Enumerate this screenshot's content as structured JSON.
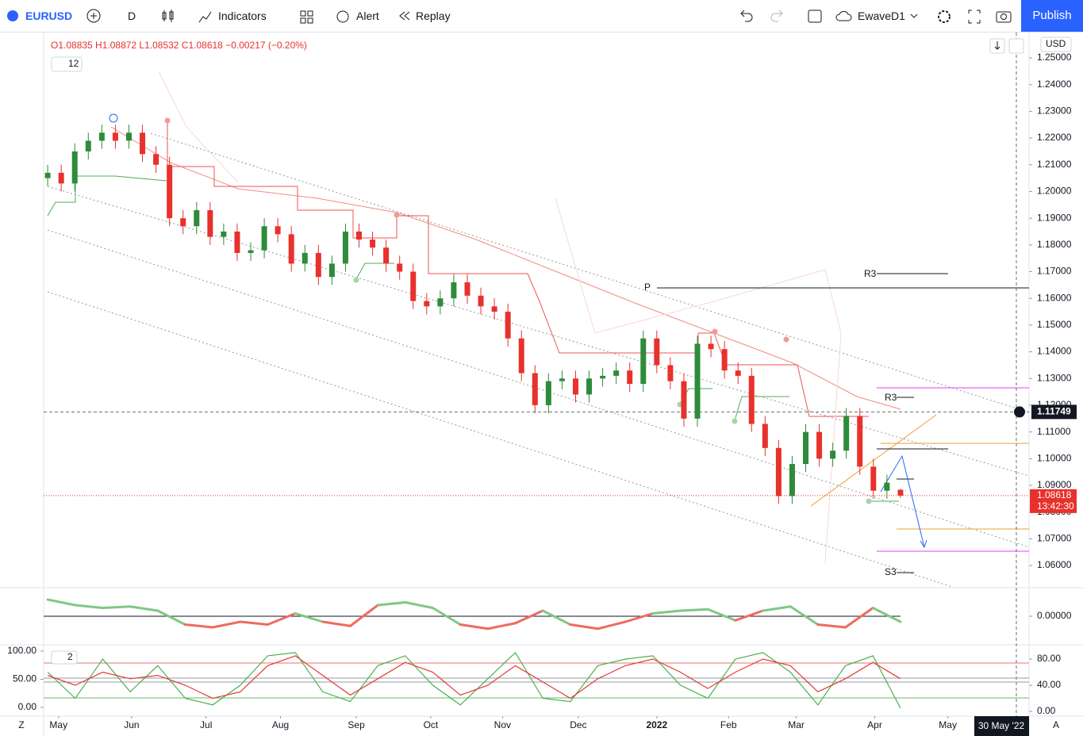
{
  "toolbar": {
    "symbol": "EURUSD",
    "interval": "D",
    "indicators": "Indicators",
    "alert": "Alert",
    "replay": "Replay",
    "layout": "EwaveD1",
    "publish": "Publish"
  },
  "legend": {
    "ohlc": "O1.08835 H1.08872 L1.08532 C1.08618 −0.00217 (−0.20%)",
    "indicator_count": "12",
    "pane_count": "2"
  },
  "price_axis": {
    "currency": "USD",
    "crosshair": 1.11749,
    "last_price": 1.08618,
    "countdown": "13:42:30"
  },
  "annotations": {
    "pivot": "P",
    "r3_upper": "R3",
    "r3_lower": "R3",
    "s3": "S3"
  },
  "time_axis": {
    "left": "Z",
    "right": "A",
    "crosshair_date": "30 May '22"
  },
  "chart_data": [
    {
      "type": "candlestick",
      "up_color": "#2e8b3a",
      "down_color": "#e8312c",
      "grid": false,
      "xlim": [
        -0.3,
        72.5
      ],
      "ylim": [
        1.052,
        1.2598
      ],
      "xticks": [
        {
          "value": 0.8,
          "label": "May"
        },
        {
          "value": 6.2,
          "label": "Jun"
        },
        {
          "value": 11.7,
          "label": "Jul"
        },
        {
          "value": 17.2,
          "label": "Aug"
        },
        {
          "value": 22.8,
          "label": "Sep"
        },
        {
          "value": 28.3,
          "label": "Oct"
        },
        {
          "value": 33.6,
          "label": "Nov"
        },
        {
          "value": 39.2,
          "label": "Dec"
        },
        {
          "value": 45.0,
          "label": "2022"
        },
        {
          "value": 50.3,
          "label": "Feb"
        },
        {
          "value": 55.3,
          "label": "Mar"
        },
        {
          "value": 61.1,
          "label": "Apr"
        },
        {
          "value": 66.5,
          "label": "May"
        }
      ],
      "yticks": [
        {
          "value": 1.25,
          "label": "1.25000"
        },
        {
          "value": 1.24,
          "label": "1.24000"
        },
        {
          "value": 1.23,
          "label": "1.23000"
        },
        {
          "value": 1.22,
          "label": "1.22000"
        },
        {
          "value": 1.21,
          "label": "1.21000"
        },
        {
          "value": 1.2,
          "label": "1.20000"
        },
        {
          "value": 1.19,
          "label": "1.19000"
        },
        {
          "value": 1.18,
          "label": "1.18000"
        },
        {
          "value": 1.17,
          "label": "1.17000"
        },
        {
          "value": 1.16,
          "label": "1.16000"
        },
        {
          "value": 1.15,
          "label": "1.15000"
        },
        {
          "value": 1.14,
          "label": "1.14000"
        },
        {
          "value": 1.13,
          "label": "1.13000"
        },
        {
          "value": 1.12,
          "label": "1.12000"
        },
        {
          "value": 1.11,
          "label": "1.11000"
        },
        {
          "value": 1.1,
          "label": "1.10000"
        },
        {
          "value": 1.09,
          "label": "1.09000"
        },
        {
          "value": 1.08,
          "label": "1.08000"
        },
        {
          "value": 1.07,
          "label": "1.07000"
        },
        {
          "value": 1.06,
          "label": "1.06000"
        }
      ],
      "open": [
        1.205,
        1.207,
        1.203,
        1.215,
        1.219,
        1.222,
        1.219,
        1.222,
        1.214,
        1.21,
        1.19,
        1.187,
        1.193,
        1.183,
        1.185,
        1.177,
        1.178,
        1.187,
        1.184,
        1.173,
        1.177,
        1.168,
        1.173,
        1.185,
        1.182,
        1.179,
        1.173,
        1.17,
        1.159,
        1.157,
        1.16,
        1.166,
        1.161,
        1.157,
        1.155,
        1.145,
        1.132,
        1.12,
        1.129,
        1.13,
        1.124,
        1.13,
        1.131,
        1.133,
        1.128,
        1.145,
        1.135,
        1.129,
        1.115,
        1.143,
        1.141,
        1.133,
        1.131,
        1.113,
        1.104,
        1.086,
        1.098,
        1.11,
        1.1,
        1.103,
        1.116,
        1.097,
        1.088,
        1.08835
      ],
      "high": [
        1.21,
        1.21,
        1.218,
        1.222,
        1.225,
        1.225,
        1.225,
        1.225,
        1.217,
        1.213,
        1.193,
        1.196,
        1.196,
        1.188,
        1.188,
        1.181,
        1.19,
        1.19,
        1.187,
        1.18,
        1.18,
        1.176,
        1.188,
        1.188,
        1.185,
        1.182,
        1.176,
        1.173,
        1.162,
        1.163,
        1.169,
        1.169,
        1.164,
        1.16,
        1.158,
        1.148,
        1.135,
        1.132,
        1.133,
        1.133,
        1.133,
        1.134,
        1.136,
        1.136,
        1.148,
        1.148,
        1.138,
        1.132,
        1.146,
        1.146,
        1.144,
        1.136,
        1.134,
        1.116,
        1.107,
        1.101,
        1.113,
        1.113,
        1.106,
        1.119,
        1.119,
        1.1,
        1.094,
        1.08872
      ],
      "low": [
        1.202,
        1.2,
        1.2,
        1.212,
        1.216,
        1.216,
        1.216,
        1.211,
        1.207,
        1.187,
        1.184,
        1.184,
        1.18,
        1.18,
        1.174,
        1.174,
        1.175,
        1.181,
        1.17,
        1.17,
        1.165,
        1.165,
        1.17,
        1.179,
        1.176,
        1.17,
        1.167,
        1.156,
        1.154,
        1.154,
        1.157,
        1.158,
        1.154,
        1.152,
        1.142,
        1.129,
        1.117,
        1.117,
        1.126,
        1.121,
        1.121,
        1.127,
        1.128,
        1.125,
        1.125,
        1.132,
        1.126,
        1.112,
        1.112,
        1.138,
        1.13,
        1.128,
        1.11,
        1.101,
        1.083,
        1.083,
        1.095,
        1.097,
        1.097,
        1.1,
        1.094,
        1.085,
        1.085,
        1.08532
      ],
      "close": [
        1.207,
        1.203,
        1.215,
        1.219,
        1.222,
        1.219,
        1.222,
        1.214,
        1.21,
        1.19,
        1.187,
        1.193,
        1.183,
        1.185,
        1.177,
        1.178,
        1.187,
        1.184,
        1.173,
        1.177,
        1.168,
        1.173,
        1.185,
        1.182,
        1.179,
        1.173,
        1.17,
        1.159,
        1.157,
        1.16,
        1.166,
        1.161,
        1.157,
        1.155,
        1.145,
        1.132,
        1.12,
        1.129,
        1.13,
        1.124,
        1.13,
        1.131,
        1.133,
        1.128,
        1.145,
        1.135,
        1.129,
        1.115,
        1.143,
        1.141,
        1.133,
        1.131,
        1.113,
        1.104,
        1.086,
        1.098,
        1.11,
        1.1,
        1.103,
        1.116,
        1.097,
        1.088,
        1.091,
        1.08618
      ]
    },
    {
      "type": "oscillator",
      "positive_color": "#81c784",
      "negative_color": "#ef6b5f",
      "ylim": [
        -0.02,
        0.02
      ],
      "yticks": [
        {
          "value": 0,
          "label": "0.00000"
        }
      ],
      "values": [
        0.012,
        0.008,
        0.006,
        0.007,
        0.004,
        -0.006,
        -0.008,
        -0.004,
        -0.006,
        0.002,
        -0.004,
        -0.007,
        0.008,
        0.01,
        0.006,
        -0.006,
        -0.009,
        -0.005,
        0.004,
        -0.006,
        -0.009,
        -0.004,
        0.002,
        0.004,
        0.005,
        -0.003,
        0.004,
        0.007,
        -0.006,
        -0.008,
        0.006,
        -0.004
      ]
    },
    {
      "type": "line",
      "ylim": [
        0,
        100
      ],
      "yticks": [
        {
          "value": 80,
          "label": "80.00"
        },
        {
          "value": 40,
          "label": "40.00"
        },
        {
          "value": 0,
          "label": "0.00"
        }
      ],
      "y2lim": [
        0,
        100
      ],
      "y2ticks": [
        {
          "value": 100,
          "label": "100.00"
        },
        {
          "value": 50,
          "label": "50.00"
        },
        {
          "value": 0,
          "label": "0.00"
        }
      ],
      "series": [
        {
          "color": "#4caf50",
          "values": [
            60,
            20,
            80,
            30,
            70,
            20,
            10,
            40,
            85,
            90,
            30,
            15,
            70,
            85,
            40,
            10,
            50,
            90,
            20,
            15,
            70,
            80,
            85,
            40,
            20,
            80,
            90,
            60,
            10,
            70,
            85,
            5
          ]
        },
        {
          "color": "#e53935",
          "values": [
            55,
            40,
            60,
            50,
            55,
            40,
            20,
            30,
            70,
            85,
            55,
            25,
            50,
            75,
            60,
            25,
            40,
            70,
            45,
            20,
            50,
            70,
            80,
            60,
            35,
            60,
            80,
            70,
            30,
            50,
            75,
            50
          ]
        }
      ]
    }
  ]
}
